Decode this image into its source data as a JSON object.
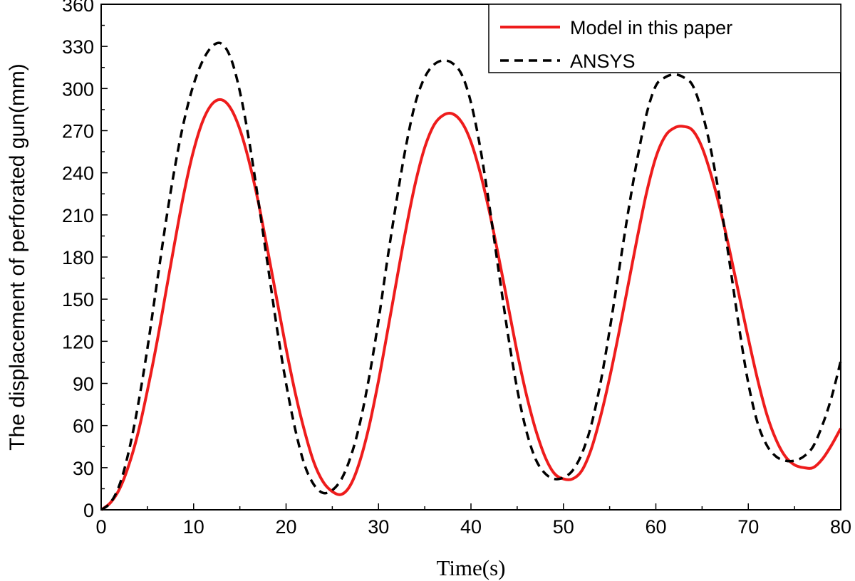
{
  "chart_data": {
    "type": "line",
    "xlabel": "Time(s)",
    "ylabel": "The displacement of perforated gun(mm)",
    "xlim": [
      0,
      80
    ],
    "ylim": [
      0,
      360
    ],
    "x_ticks": [
      0,
      10,
      20,
      30,
      40,
      50,
      60,
      70,
      80
    ],
    "y_ticks": [
      0,
      30,
      60,
      90,
      120,
      150,
      180,
      210,
      240,
      270,
      300,
      330,
      360
    ],
    "grid": false,
    "legend_position": "top-right",
    "series": [
      {
        "name": "Model in this paper",
        "color": "#ee1c1c",
        "style": "solid",
        "x": [
          0,
          1,
          2,
          3,
          4,
          5,
          6,
          7,
          8,
          9,
          10,
          11,
          12,
          13,
          14,
          15,
          16,
          17,
          18,
          19,
          20,
          21,
          22,
          23,
          24,
          25,
          26,
          27,
          28,
          29,
          30,
          31,
          32,
          33,
          34,
          35,
          36,
          37,
          38,
          39,
          40,
          41,
          42,
          43,
          44,
          45,
          46,
          47,
          48,
          49,
          50,
          51,
          52,
          53,
          54,
          55,
          56,
          57,
          58,
          59,
          60,
          61,
          62,
          63,
          64,
          65,
          66,
          67,
          68,
          69,
          70,
          71,
          72,
          73,
          74,
          75,
          76,
          77,
          78,
          79,
          80
        ],
        "y": [
          0,
          5,
          15,
          32,
          55,
          85,
          118,
          155,
          192,
          227,
          256,
          277,
          289,
          292,
          286,
          271,
          248,
          219,
          185,
          150,
          115,
          83,
          56,
          34,
          20,
          13,
          11,
          18,
          35,
          60,
          92,
          128,
          165,
          201,
          233,
          258,
          274,
          281,
          282,
          276,
          262,
          240,
          212,
          180,
          146,
          112,
          82,
          57,
          38,
          26,
          22,
          22,
          28,
          43,
          66,
          94,
          126,
          160,
          194,
          226,
          251,
          266,
          272,
          273,
          270,
          258,
          238,
          213,
          184,
          153,
          122,
          93,
          68,
          50,
          38,
          32,
          30,
          30,
          36,
          46,
          58
        ]
      },
      {
        "name": "ANSYS",
        "color": "#000000",
        "style": "dashed",
        "x": [
          0,
          1,
          2,
          3,
          4,
          5,
          6,
          7,
          8,
          9,
          10,
          11,
          12,
          13,
          14,
          15,
          16,
          17,
          18,
          19,
          20,
          21,
          22,
          23,
          24,
          25,
          26,
          27,
          28,
          29,
          30,
          31,
          32,
          33,
          34,
          35,
          36,
          37,
          38,
          39,
          40,
          41,
          42,
          43,
          44,
          45,
          46,
          47,
          48,
          49,
          50,
          51,
          52,
          53,
          54,
          55,
          56,
          57,
          58,
          59,
          60,
          61,
          62,
          63,
          64,
          65,
          66,
          67,
          68,
          69,
          70,
          71,
          72,
          73,
          74,
          75,
          76,
          77,
          78,
          79,
          80
        ],
        "y": [
          0,
          5,
          18,
          42,
          75,
          115,
          160,
          205,
          245,
          278,
          303,
          320,
          330,
          332,
          322,
          298,
          263,
          220,
          175,
          130,
          90,
          57,
          32,
          18,
          12,
          14,
          22,
          38,
          62,
          95,
          135,
          180,
          222,
          260,
          290,
          308,
          317,
          320,
          318,
          310,
          290,
          258,
          216,
          170,
          125,
          86,
          56,
          36,
          26,
          22,
          23,
          28,
          40,
          60,
          90,
          128,
          170,
          212,
          250,
          282,
          302,
          308,
          310,
          308,
          302,
          283,
          255,
          218,
          175,
          130,
          90,
          62,
          46,
          38,
          35,
          35,
          38,
          45,
          60,
          80,
          106
        ]
      }
    ]
  }
}
